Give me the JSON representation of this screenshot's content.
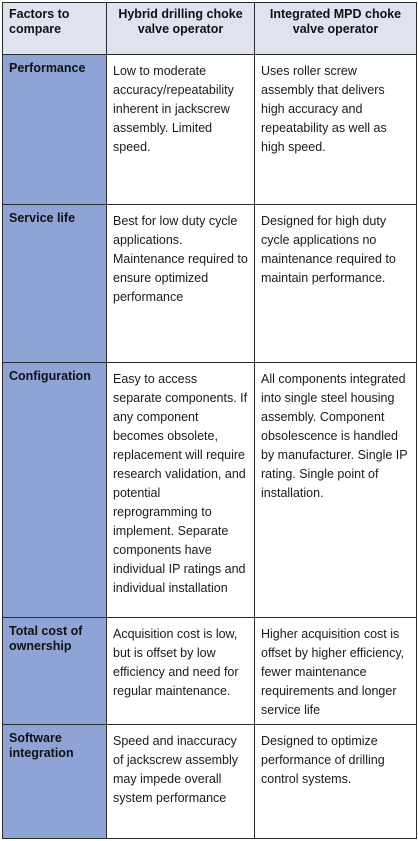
{
  "header": {
    "factors": "Factors to compare",
    "hybrid": "Hybrid drilling choke valve operator",
    "integrated": "Integrated MPD choke valve operator"
  },
  "rows": [
    {
      "factor": "Performance",
      "hybrid": "Low to moderate accuracy/repeatability inherent in jackscrew assembly. Limited speed.",
      "integrated": "Uses roller screw assembly that delivers high accuracy and repeatability as well as high speed."
    },
    {
      "factor": "Service life",
      "hybrid": "Best for low duty cycle applications. Maintenance required to ensure optimized performance",
      "integrated": "Designed for high duty cycle applications no maintenance required to maintain performance."
    },
    {
      "factor": "Configuration",
      "hybrid": "Easy to access separate components. If any component becomes obsolete, replacement will require research validation, and potential reprogramming to implement. Separate components have individual IP ratings and individual installation",
      "integrated": "All components integrated into single steel housing assembly. Component obsolescence is handled by manufacturer. Single IP rating. Single point of installation."
    },
    {
      "factor": "Total cost of ownership",
      "hybrid": "Acquisition cost is low, but is offset by low efficiency and need for regular maintenance.",
      "integrated": "Higher acquisition cost is offset by higher efficiency, fewer maintenance requirements and longer service life"
    },
    {
      "factor": "Software integration",
      "hybrid": "Speed and inaccuracy of jackscrew assembly may impede overall system performance",
      "integrated": "Designed to optimize performance of drilling control systems."
    }
  ]
}
